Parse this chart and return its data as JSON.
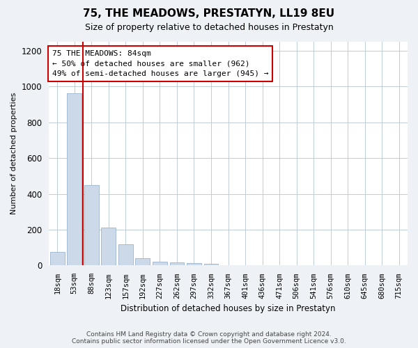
{
  "title": "75, THE MEADOWS, PRESTATYN, LL19 8EU",
  "subtitle": "Size of property relative to detached houses in Prestatyn",
  "xlabel": "Distribution of detached houses by size in Prestatyn",
  "ylabel": "Number of detached properties",
  "bar_color": "#ccd9e8",
  "bar_edge_color": "#99b3cc",
  "annotation_line_color": "#cc0000",
  "annotation_text": "75 THE MEADOWS: 84sqm\n← 50% of detached houses are smaller (962)\n49% of semi-detached houses are larger (945) →",
  "categories": [
    "18sqm",
    "53sqm",
    "88sqm",
    "123sqm",
    "157sqm",
    "192sqm",
    "227sqm",
    "262sqm",
    "297sqm",
    "332sqm",
    "367sqm",
    "401sqm",
    "436sqm",
    "471sqm",
    "506sqm",
    "541sqm",
    "576sqm",
    "610sqm",
    "645sqm",
    "680sqm",
    "715sqm"
  ],
  "values": [
    75,
    962,
    450,
    213,
    120,
    40,
    20,
    18,
    14,
    8,
    0,
    0,
    0,
    0,
    0,
    0,
    0,
    0,
    0,
    0,
    0
  ],
  "ylim": [
    0,
    1250
  ],
  "yticks": [
    0,
    200,
    400,
    600,
    800,
    1000,
    1200
  ],
  "footer_text": "Contains HM Land Registry data © Crown copyright and database right 2024.\nContains public sector information licensed under the Open Government Licence v3.0.",
  "bg_color": "#eef2f7",
  "plot_bg_color": "#ffffff",
  "grid_color": "#c0ccd8"
}
